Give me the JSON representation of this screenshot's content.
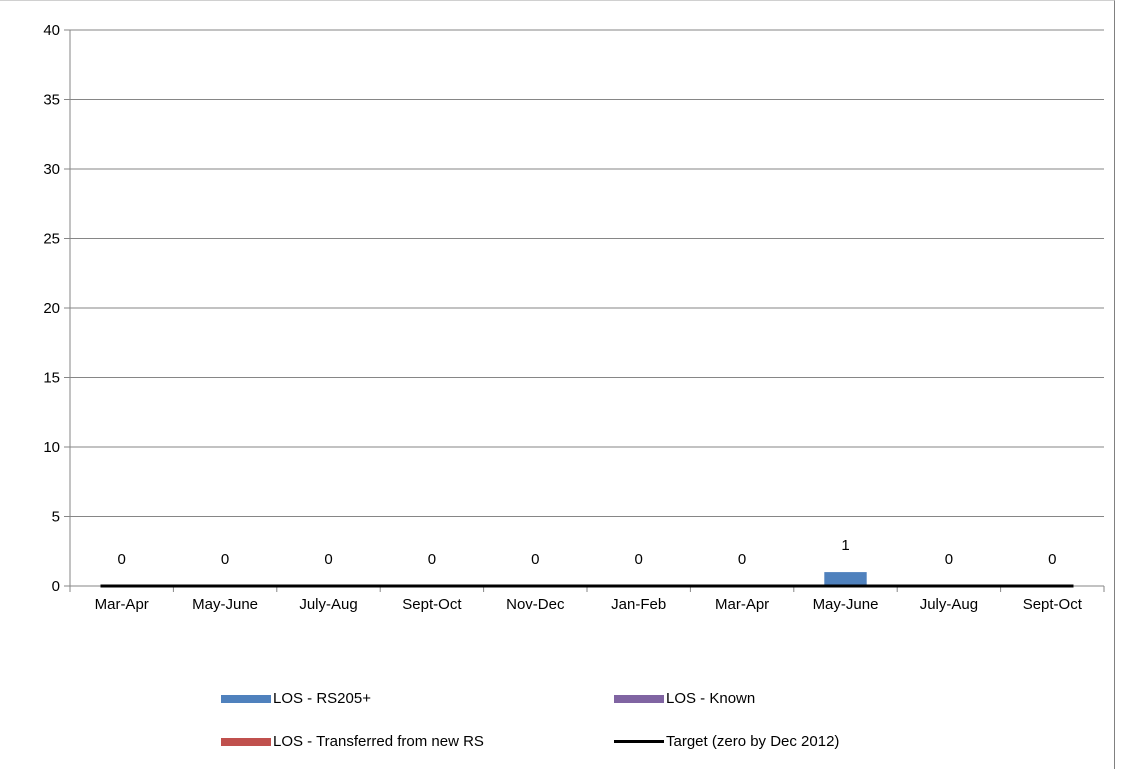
{
  "chart_data": {
    "type": "bar",
    "title": "",
    "xlabel": "",
    "ylabel": "",
    "ylim": [
      0,
      40
    ],
    "yticks": [
      "0",
      "5",
      "10",
      "15",
      "20",
      "25",
      "30",
      "35",
      "40"
    ],
    "grid": true,
    "legend_position": "bottom",
    "categories": [
      "Mar-Apr",
      "May-June",
      "July-Aug",
      "Sept-Oct",
      "Nov-Dec",
      "Jan-Feb",
      "Mar-Apr",
      "May-June",
      "July-Aug",
      "Sept-Oct"
    ],
    "series": [
      {
        "name": "LOS - RS205+",
        "type": "bar",
        "color": "#4f81bd",
        "values": [
          0,
          0,
          0,
          0,
          0,
          0,
          0,
          1,
          0,
          0
        ]
      },
      {
        "name": "LOS - Known",
        "type": "bar",
        "color": "#8064a2",
        "values": [
          0,
          0,
          0,
          0,
          0,
          0,
          0,
          0,
          0,
          0
        ]
      },
      {
        "name": "LOS - Transferred from new RS",
        "type": "bar",
        "color": "#c0504d",
        "values": [
          0,
          0,
          0,
          0,
          0,
          0,
          0,
          0,
          0,
          0
        ]
      },
      {
        "name": "Target (zero by Dec 2012)",
        "type": "line",
        "color": "#000000",
        "values": [
          0,
          0,
          0,
          0,
          0,
          0,
          0,
          0,
          0,
          0
        ]
      }
    ],
    "data_labels": [
      "0",
      "0",
      "0",
      "0",
      "0",
      "0",
      "0",
      "1",
      "0",
      "0"
    ]
  }
}
